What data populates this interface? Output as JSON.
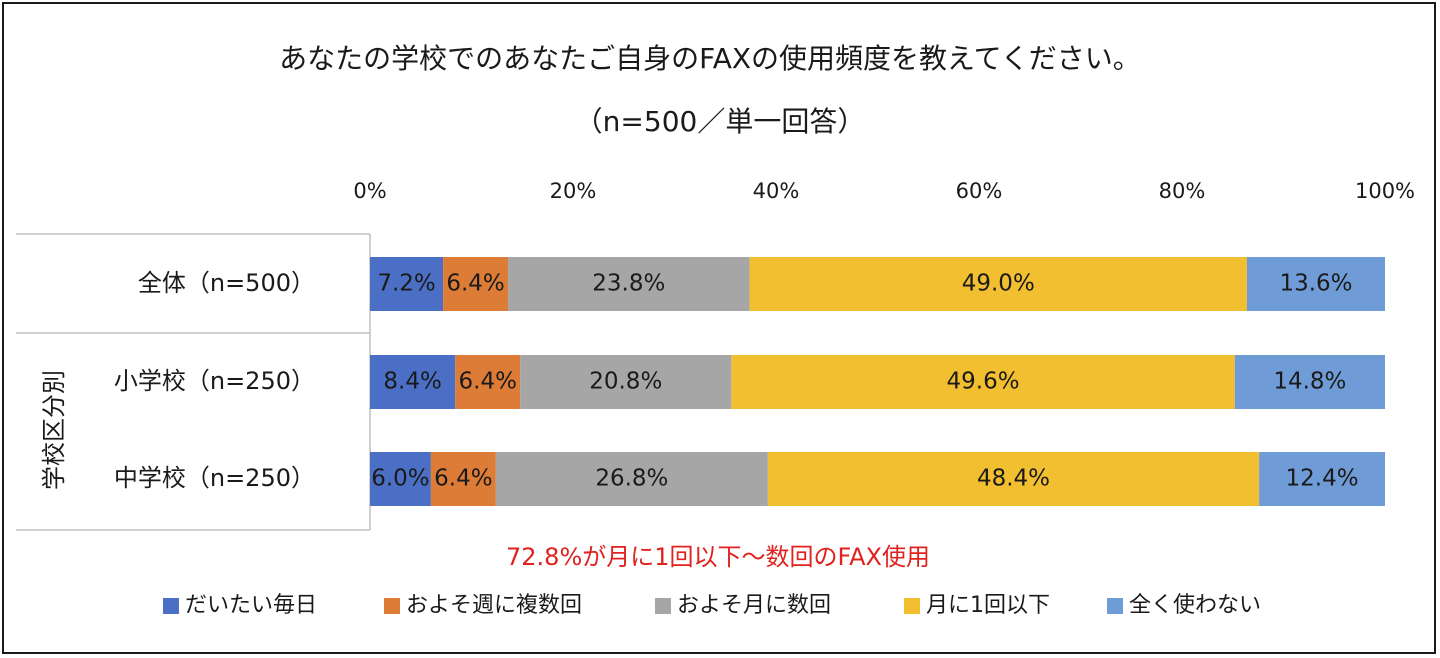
{
  "chart_data": {
    "type": "bar",
    "orientation": "horizontal",
    "stacked": "100%",
    "title": "あなたの学校でのあなたご自身のFAXの使用頻度を教えてください。",
    "subtitle": "（n=500／単一回答）",
    "x_ticks": [
      "0%",
      "20%",
      "40%",
      "60%",
      "80%",
      "100%"
    ],
    "xlim": [
      0,
      100
    ],
    "group_label": "学校区分別",
    "categories": [
      "全体（n=500）",
      "小学校（n=250）",
      "中学校（n=250）"
    ],
    "series": [
      {
        "name": "だいたい毎日",
        "color": "#4a6fc4",
        "values": [
          7.2,
          8.4,
          6.0
        ],
        "labels": [
          "7.2%",
          "8.4%",
          "6.0%"
        ]
      },
      {
        "name": "およそ週に複数回",
        "color": "#dd7c37",
        "values": [
          6.4,
          6.4,
          6.4
        ],
        "labels": [
          "6.4%",
          "6.4%",
          "6.4%"
        ]
      },
      {
        "name": "およそ月に数回",
        "color": "#a6a6a6",
        "values": [
          23.8,
          20.8,
          26.8
        ],
        "labels": [
          "23.8%",
          "20.8%",
          "26.8%"
        ]
      },
      {
        "name": "月に1回以下",
        "color": "#f1bf2f",
        "values": [
          49.0,
          49.6,
          48.4
        ],
        "labels": [
          "49.0%",
          "49.6%",
          "48.4%"
        ]
      },
      {
        "name": "全く使わない",
        "color": "#6f9bd6",
        "values": [
          13.6,
          14.8,
          12.4
        ],
        "labels": [
          "13.6%",
          "14.8%",
          "12.4%"
        ]
      }
    ],
    "annotation": "72.8%が月に1回以下～数回のFAX使用",
    "legend_position": "bottom",
    "grid": false
  }
}
